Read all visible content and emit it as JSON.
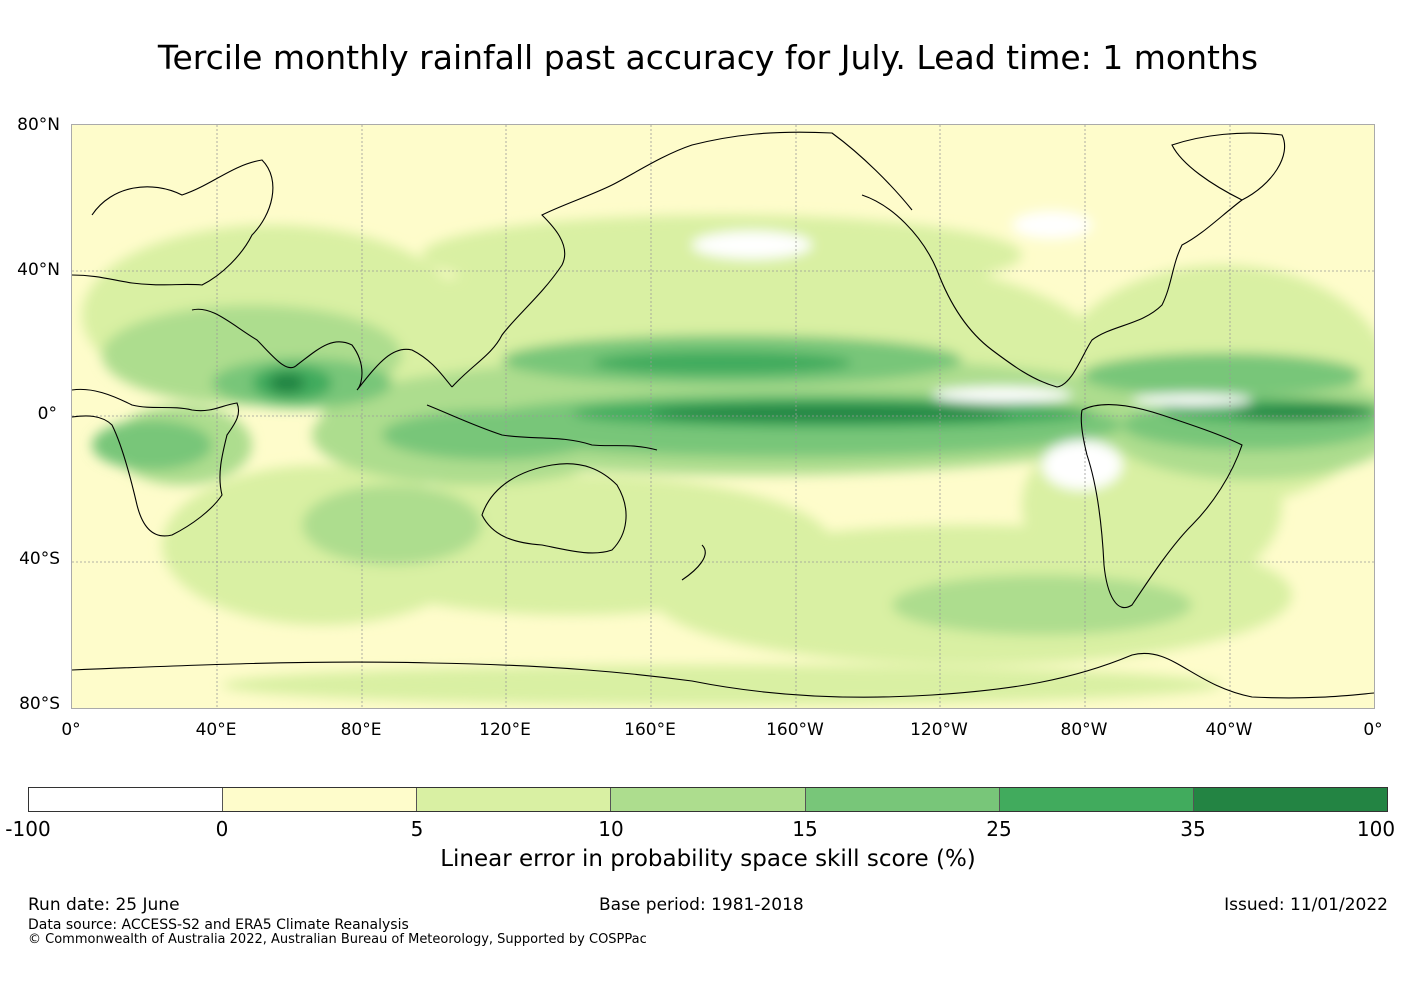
{
  "title": "Tercile monthly rainfall past accuracy for July. Lead time: 1 months",
  "map": {
    "lat_labels": [
      "80°N",
      "40°N",
      "0°",
      "40°S",
      "80°S"
    ],
    "lon_labels": [
      "0°",
      "40°E",
      "80°E",
      "120°E",
      "160°E",
      "160°W",
      "120°W",
      "80°W",
      "40°W",
      "0°"
    ],
    "ocean_color": "#fefccb",
    "gridline_color": "#999999"
  },
  "colorbar": {
    "colors": [
      "#ffffff",
      "#fefccb",
      "#d9f0a3",
      "#addd8e",
      "#78c679",
      "#41ab5d",
      "#238443"
    ],
    "ticks": [
      "-100",
      "0",
      "5",
      "10",
      "15",
      "25",
      "35",
      "100"
    ],
    "label": "Linear error in probability space skill score (%)"
  },
  "footer": {
    "run_date": "Run date: 25 June",
    "base_period": "Base period: 1981-2018",
    "issued": "Issued: 11/01/2022",
    "data_source": "Data source: ACCESS-S2 and ERA5 Climate Reanalysis",
    "copyright": "© Commonwealth of Australia 2022, Australian Bureau of Meteorology, Supported by COSPPac"
  }
}
